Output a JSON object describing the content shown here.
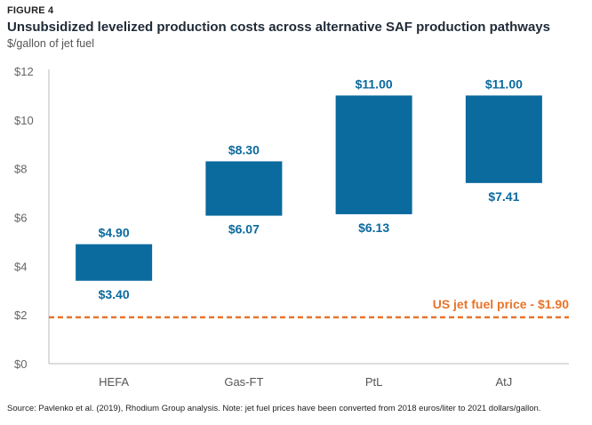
{
  "figure_label": "FIGURE 4",
  "title": "Unsubsidized levelized production costs across alternative SAF production pathways",
  "subtitle": "$/gallon of jet fuel",
  "source": "Source: Pavlenko et al. (2019), Rhodium Group analysis. Note: jet fuel prices have been converted from 2018 euros/liter to 2021 dollars/gallon.",
  "colors": {
    "bar": "#0b6a9e",
    "reference": "#e8742a",
    "axis": "#bbbbbb"
  },
  "chart_data": {
    "type": "bar",
    "categories": [
      "HEFA",
      "Gas-FT",
      "PtL",
      "AtJ"
    ],
    "low": [
      3.4,
      6.07,
      6.13,
      7.41
    ],
    "high": [
      4.9,
      8.3,
      11.0,
      11.0
    ],
    "low_labels": [
      "$3.40",
      "$6.07",
      "$6.13",
      "$7.41"
    ],
    "high_labels": [
      "$4.90",
      "$8.30",
      "$11.00",
      "$11.00"
    ],
    "ylim": [
      0,
      12
    ],
    "yticks": [
      0,
      2,
      4,
      6,
      8,
      10,
      12
    ],
    "ytick_labels": [
      "$0",
      "$2",
      "$4",
      "$6",
      "$8",
      "$10",
      "$12"
    ],
    "reference_line": {
      "value": 1.9,
      "label": "US jet fuel price - $1.90"
    }
  }
}
